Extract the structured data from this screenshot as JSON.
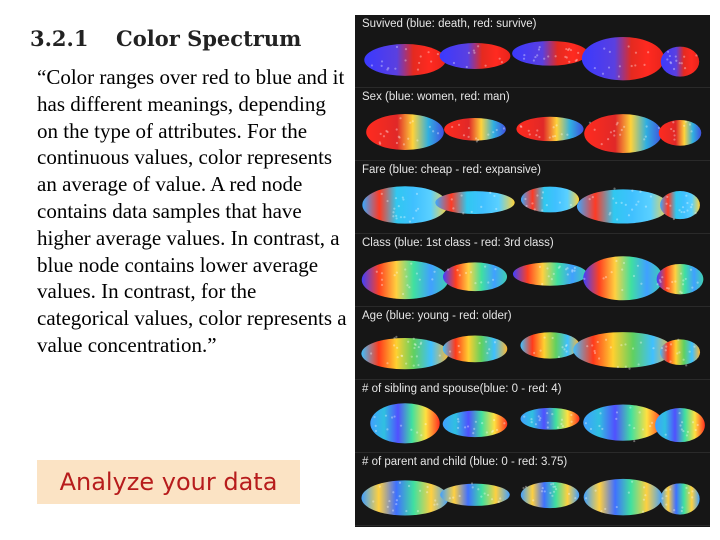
{
  "heading": {
    "number": "3.2.1",
    "title": "Color Spectrum"
  },
  "quote": "“Color ranges over red to blue and it has different meanings, depending on the type of attributes. For the continuous values, color represents an average of value. A red node contains data samples that have higher average values. In contrast, a blue node contains lower average values. In contrast, for the categorical values, color represents a value concentration.”",
  "button": {
    "label": "Analyze your data"
  },
  "colors": {
    "button_bg": "#fbe3c4",
    "button_text": "#b71c1c",
    "panel_bg": "#161616"
  },
  "panels": [
    {
      "label": "Suvived (blue: death, red: survive)",
      "gradient": [
        "#3a3aff",
        "#4a3cf0",
        "#5a40e0",
        "#e42a20",
        "#ff2a20",
        "#e8241c"
      ]
    },
    {
      "label": "Sex (blue: women, red: man)",
      "gradient": [
        "#ff2a20",
        "#f02a22",
        "#e02828",
        "#ffd23a",
        "#30b0e0",
        "#4050e0"
      ]
    },
    {
      "label": "Fare (blue: cheap - red: expansive)",
      "gradient": [
        "#3aa8ff",
        "#ff3a24",
        "#30c8f0",
        "#40c0ff",
        "#5ad0ff",
        "#ffd23a"
      ]
    },
    {
      "label": "Class (blue: 1st class - red: 3rd class)",
      "gradient": [
        "#4040ff",
        "#ff4020",
        "#ffd040",
        "#40e0a0",
        "#40a0ff",
        "#40d0b0"
      ]
    },
    {
      "label": "Age (blue: young - red: older)",
      "gradient": [
        "#40c0ff",
        "#ff3a1c",
        "#ffd030",
        "#60d060",
        "#40c0ff",
        "#ffb830"
      ]
    },
    {
      "label": "# of sibling and spouse(blue: 0 - red: 4)",
      "gradient": [
        "#40a0ff",
        "#30c0e0",
        "#5050ff",
        "#40e0a0",
        "#ffe040",
        "#ff3020"
      ]
    },
    {
      "label": "# of parent and child (blue: 0 - red: 3.75)",
      "gradient": [
        "#40a0ff",
        "#ffd040",
        "#4070ff",
        "#40e0a0",
        "#ffd040",
        "#40a0ff"
      ]
    }
  ]
}
